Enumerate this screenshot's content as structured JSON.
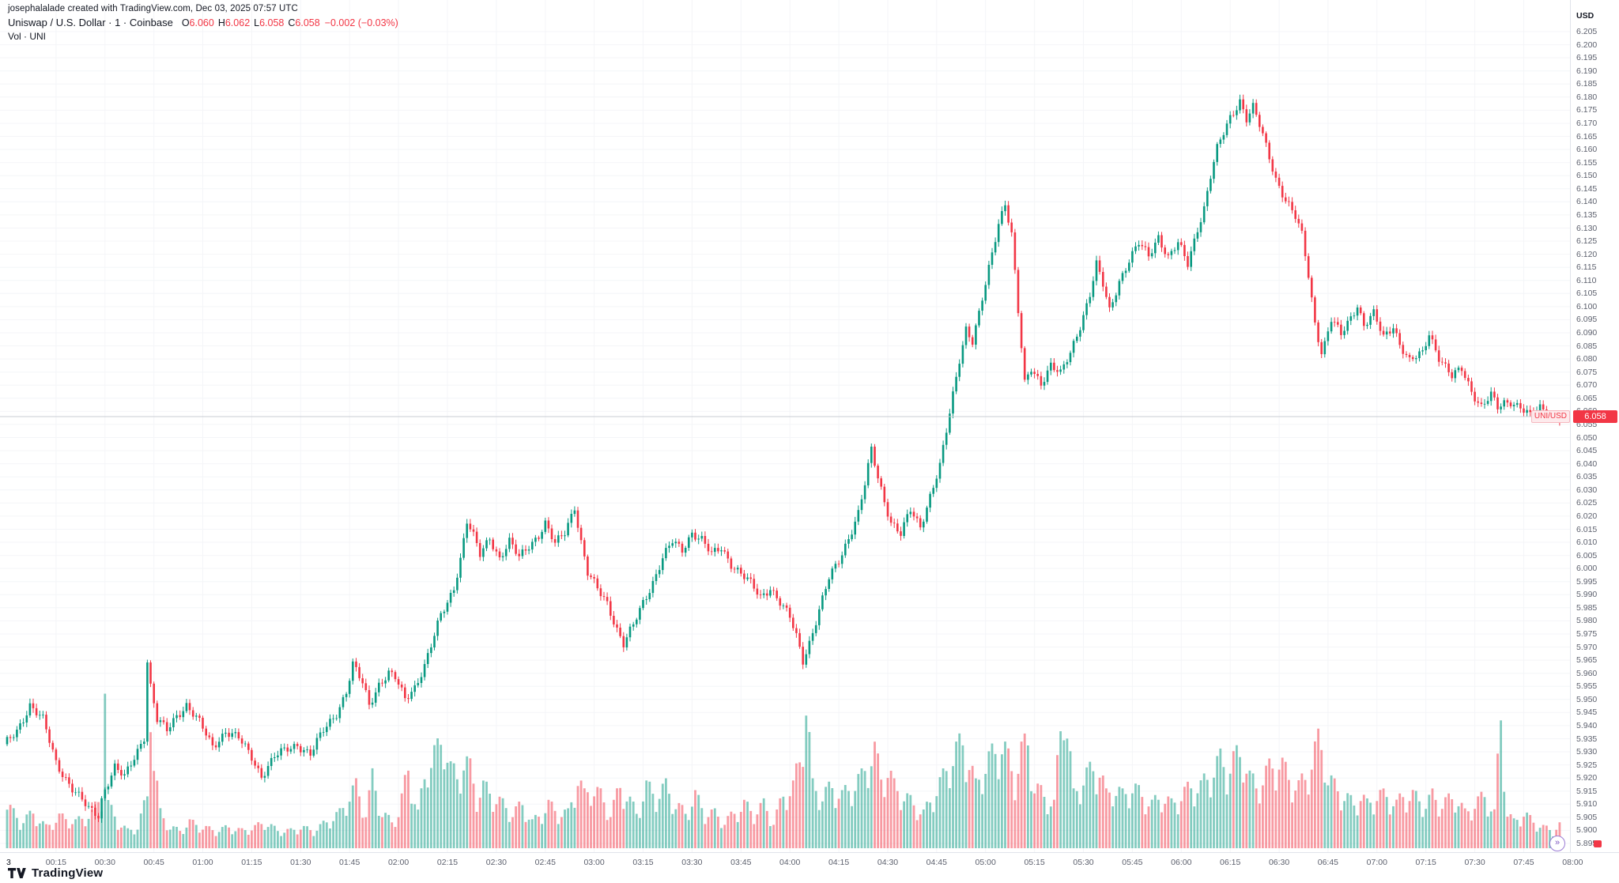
{
  "header": {
    "attribution": "josephalalade created with TradingView.com, Dec 03, 2025 07:57 UTC",
    "symbol_title": "Uniswap / U.S. Dollar · 1 · Coinbase",
    "ohlc": {
      "o_label": "O",
      "o": "6.060",
      "h_label": "H",
      "h": "6.062",
      "l_label": "L",
      "l": "6.058",
      "c_label": "C",
      "c": "6.058",
      "change": "−0.002 (−0.03%)"
    },
    "indicator": "Vol · UNI"
  },
  "price_scale": {
    "symbol_badge": "UNI/USD",
    "last_badge": "6.058"
  },
  "footer": {
    "logo_text": "TradingView"
  },
  "misc": {
    "goto_glyph": "»"
  },
  "chart_data": {
    "type": "candlestick",
    "symbol": "UNI/USD",
    "exchange": "Coinbase",
    "interval_minutes": 1,
    "session": "Dec 03, 2025 00:00–07:57 UTC",
    "last": {
      "open": 6.06,
      "high": 6.062,
      "low": 6.058,
      "close": 6.058,
      "change": -0.002,
      "change_pct": "-0.03%"
    },
    "price_line": 6.058,
    "y_axis": {
      "min": 5.895,
      "max": 6.205,
      "step": 0.005,
      "unit": "USD"
    },
    "x_axis": {
      "start_label": "3",
      "minutes_per_label": 15,
      "labels": [
        "00:15",
        "00:30",
        "00:45",
        "01:00",
        "01:15",
        "01:30",
        "01:45",
        "02:00",
        "02:15",
        "02:30",
        "02:45",
        "03:00",
        "03:15",
        "03:30",
        "03:45",
        "04:00",
        "04:15",
        "04:30",
        "04:45",
        "05:00",
        "05:15",
        "05:30",
        "05:45",
        "06:00",
        "06:15",
        "06:30",
        "06:45",
        "07:00",
        "07:15",
        "07:30",
        "07:45",
        "08:00"
      ]
    },
    "colors": {
      "up": "#089981",
      "down": "#f23645",
      "vol_up": "rgba(8,153,129,0.5)",
      "vol_down": "rgba(242,54,69,0.5)",
      "grid": "#f4f5f8",
      "price_line": "#c9ccd3"
    },
    "anchors_format": "[minute_from_00:00, price_usd, relative_volume_0_to_1]",
    "anchors": [
      [
        0,
        5.932,
        0.25
      ],
      [
        4,
        5.938,
        0.15
      ],
      [
        8,
        5.948,
        0.2
      ],
      [
        12,
        5.942,
        0.12
      ],
      [
        16,
        5.926,
        0.18
      ],
      [
        21,
        5.916,
        0.15
      ],
      [
        26,
        5.908,
        0.2
      ],
      [
        29,
        5.906,
        0.3
      ],
      [
        30,
        5.912,
        1.0
      ],
      [
        31,
        5.916,
        0.25
      ],
      [
        34,
        5.924,
        0.15
      ],
      [
        37,
        5.92,
        0.1
      ],
      [
        40,
        5.928,
        0.12
      ],
      [
        43,
        5.936,
        0.3
      ],
      [
        44,
        5.965,
        0.95
      ],
      [
        45,
        5.955,
        0.5
      ],
      [
        47,
        5.942,
        0.2
      ],
      [
        50,
        5.938,
        0.12
      ],
      [
        53,
        5.944,
        0.1
      ],
      [
        56,
        5.948,
        0.15
      ],
      [
        60,
        5.941,
        0.12
      ],
      [
        64,
        5.932,
        0.1
      ],
      [
        68,
        5.938,
        0.12
      ],
      [
        72,
        5.935,
        0.1
      ],
      [
        76,
        5.928,
        0.12
      ],
      [
        79,
        5.921,
        0.15
      ],
      [
        83,
        5.928,
        0.1
      ],
      [
        87,
        5.931,
        0.1
      ],
      [
        90,
        5.933,
        0.12
      ],
      [
        94,
        5.929,
        0.1
      ],
      [
        98,
        5.938,
        0.15
      ],
      [
        102,
        5.945,
        0.2
      ],
      [
        105,
        5.953,
        0.3
      ],
      [
        107,
        5.963,
        0.35
      ],
      [
        110,
        5.956,
        0.2
      ],
      [
        112,
        5.948,
        0.4
      ],
      [
        115,
        5.956,
        0.2
      ],
      [
        118,
        5.96,
        0.15
      ],
      [
        120,
        5.958,
        0.2
      ],
      [
        123,
        5.95,
        0.45
      ],
      [
        126,
        5.955,
        0.2
      ],
      [
        129,
        5.963,
        0.5
      ],
      [
        132,
        5.974,
        0.55
      ],
      [
        134,
        5.982,
        0.65
      ],
      [
        136,
        5.987,
        0.45
      ],
      [
        138,
        5.993,
        0.4
      ],
      [
        140,
        6.004,
        0.5
      ],
      [
        142,
        6.018,
        0.45
      ],
      [
        144,
        6.012,
        0.3
      ],
      [
        146,
        6.005,
        0.35
      ],
      [
        149,
        6.012,
        0.3
      ],
      [
        152,
        6.004,
        0.25
      ],
      [
        155,
        6.01,
        0.2
      ],
      [
        158,
        6.004,
        0.25
      ],
      [
        161,
        6.009,
        0.15
      ],
      [
        164,
        6.013,
        0.2
      ],
      [
        166,
        6.017,
        0.25
      ],
      [
        169,
        6.009,
        0.2
      ],
      [
        172,
        6.014,
        0.2
      ],
      [
        175,
        6.024,
        0.4
      ],
      [
        177,
        6.01,
        0.3
      ],
      [
        179,
        5.998,
        0.35
      ],
      [
        182,
        5.992,
        0.3
      ],
      [
        185,
        5.987,
        0.2
      ],
      [
        188,
        5.977,
        0.35
      ],
      [
        190,
        5.971,
        0.3
      ],
      [
        193,
        5.978,
        0.2
      ],
      [
        196,
        5.987,
        0.35
      ],
      [
        199,
        5.995,
        0.3
      ],
      [
        202,
        6.004,
        0.35
      ],
      [
        205,
        6.01,
        0.25
      ],
      [
        208,
        6.007,
        0.2
      ],
      [
        211,
        6.014,
        0.3
      ],
      [
        214,
        6.011,
        0.2
      ],
      [
        217,
        6.005,
        0.2
      ],
      [
        220,
        6.008,
        0.15
      ],
      [
        223,
        6.002,
        0.2
      ],
      [
        226,
        5.998,
        0.25
      ],
      [
        229,
        5.994,
        0.2
      ],
      [
        232,
        5.989,
        0.25
      ],
      [
        235,
        5.993,
        0.15
      ],
      [
        238,
        5.987,
        0.3
      ],
      [
        241,
        5.981,
        0.35
      ],
      [
        243,
        5.974,
        0.5
      ],
      [
        245,
        5.965,
        0.85
      ],
      [
        247,
        5.972,
        0.35
      ],
      [
        250,
        5.984,
        0.3
      ],
      [
        253,
        5.996,
        0.35
      ],
      [
        256,
        6.003,
        0.3
      ],
      [
        259,
        6.012,
        0.35
      ],
      [
        262,
        6.021,
        0.4
      ],
      [
        264,
        6.032,
        0.5
      ],
      [
        266,
        6.045,
        0.55
      ],
      [
        268,
        6.035,
        0.4
      ],
      [
        270,
        6.026,
        0.45
      ],
      [
        272,
        6.018,
        0.35
      ],
      [
        275,
        6.013,
        0.3
      ],
      [
        278,
        6.022,
        0.25
      ],
      [
        281,
        6.016,
        0.2
      ],
      [
        284,
        6.028,
        0.3
      ],
      [
        287,
        6.039,
        0.4
      ],
      [
        289,
        6.052,
        0.5
      ],
      [
        291,
        6.066,
        0.55
      ],
      [
        293,
        6.08,
        0.6
      ],
      [
        295,
        6.092,
        0.5
      ],
      [
        297,
        6.087,
        0.35
      ],
      [
        299,
        6.097,
        0.45
      ],
      [
        301,
        6.108,
        0.5
      ],
      [
        303,
        6.12,
        0.55
      ],
      [
        305,
        6.132,
        0.6
      ],
      [
        307,
        6.14,
        0.5
      ],
      [
        309,
        6.128,
        0.4
      ],
      [
        311,
        6.098,
        0.55
      ],
      [
        313,
        6.07,
        0.6
      ],
      [
        315,
        6.076,
        0.35
      ],
      [
        318,
        6.071,
        0.3
      ],
      [
        321,
        6.078,
        0.25
      ],
      [
        324,
        6.074,
        0.9
      ],
      [
        327,
        6.082,
        0.3
      ],
      [
        330,
        6.093,
        0.4
      ],
      [
        333,
        6.105,
        0.45
      ],
      [
        335,
        6.116,
        0.45
      ],
      [
        337,
        6.108,
        0.3
      ],
      [
        339,
        6.098,
        0.35
      ],
      [
        342,
        6.11,
        0.3
      ],
      [
        345,
        6.118,
        0.35
      ],
      [
        348,
        6.124,
        0.3
      ],
      [
        351,
        6.119,
        0.25
      ],
      [
        354,
        6.127,
        0.3
      ],
      [
        357,
        6.119,
        0.25
      ],
      [
        360,
        6.124,
        0.3
      ],
      [
        363,
        6.116,
        0.35
      ],
      [
        366,
        6.13,
        0.35
      ],
      [
        368,
        6.138,
        0.4
      ],
      [
        370,
        6.15,
        0.45
      ],
      [
        372,
        6.16,
        0.5
      ],
      [
        374,
        6.166,
        0.45
      ],
      [
        376,
        6.172,
        0.5
      ],
      [
        379,
        6.179,
        0.55
      ],
      [
        381,
        6.172,
        0.4
      ],
      [
        383,
        6.176,
        0.35
      ],
      [
        385,
        6.169,
        0.4
      ],
      [
        387,
        6.161,
        0.45
      ],
      [
        390,
        6.149,
        0.5
      ],
      [
        393,
        6.141,
        0.4
      ],
      [
        396,
        6.134,
        0.35
      ],
      [
        398,
        6.127,
        0.4
      ],
      [
        400,
        6.112,
        0.5
      ],
      [
        402,
        6.094,
        0.6
      ],
      [
        404,
        6.083,
        0.55
      ],
      [
        405,
        6.086,
        0.4
      ],
      [
        407,
        6.095,
        0.35
      ],
      [
        410,
        6.089,
        0.3
      ],
      [
        413,
        6.096,
        0.25
      ],
      [
        415,
        6.101,
        0.3
      ],
      [
        417,
        6.093,
        0.25
      ],
      [
        420,
        6.097,
        0.3
      ],
      [
        423,
        6.088,
        0.3
      ],
      [
        426,
        6.093,
        0.25
      ],
      [
        428,
        6.086,
        0.3
      ],
      [
        431,
        6.079,
        0.3
      ],
      [
        435,
        6.082,
        0.25
      ],
      [
        437,
        6.09,
        0.3
      ],
      [
        440,
        6.081,
        0.25
      ],
      [
        444,
        6.073,
        0.3
      ],
      [
        447,
        6.076,
        0.2
      ],
      [
        450,
        6.068,
        0.25
      ],
      [
        453,
        6.062,
        0.3
      ],
      [
        456,
        6.066,
        0.2
      ],
      [
        458,
        6.061,
        0.75
      ],
      [
        460,
        6.063,
        0.2
      ],
      [
        462,
        6.064,
        0.15
      ],
      [
        465,
        6.062,
        0.2
      ],
      [
        468,
        6.058,
        0.15
      ],
      [
        471,
        6.061,
        0.12
      ],
      [
        474,
        6.059,
        0.1
      ],
      [
        477,
        6.058,
        0.15
      ]
    ]
  }
}
